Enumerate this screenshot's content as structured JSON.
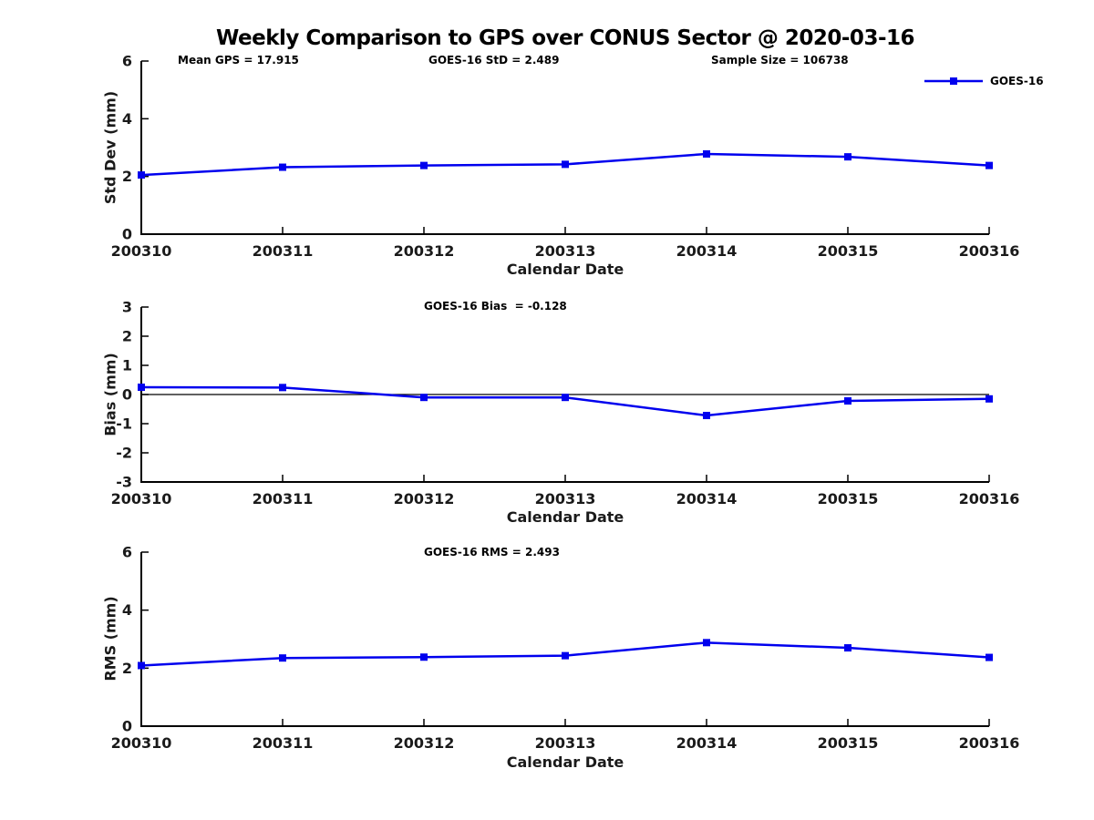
{
  "title": "Weekly Comparison to GPS over CONUS Sector @ 2020-03-16",
  "header_stats": {
    "mean_gps": "Mean GPS = 17.915",
    "std": "GOES-16 StD = 2.489",
    "sample_size": "Sample Size = 106738"
  },
  "legend": {
    "label": "GOES-16"
  },
  "colors": {
    "line": "#0000EE",
    "axis": "#000000",
    "text": "#1a1a1a",
    "zero_line": "#000000"
  },
  "chart_data": [
    {
      "type": "line",
      "title": "",
      "annotation": "",
      "categories": [
        "200310",
        "200311",
        "200312",
        "200313",
        "200314",
        "200315",
        "200316"
      ],
      "series": [
        {
          "name": "GOES-16",
          "values": [
            2.05,
            2.32,
            2.38,
            2.42,
            2.78,
            2.68,
            2.38
          ]
        }
      ],
      "xlabel": "Calendar Date",
      "ylabel": "Std Dev (mm)",
      "ylim": [
        0,
        6
      ],
      "yticks": [
        0,
        2,
        4,
        6
      ],
      "zero_line": false,
      "grid": false,
      "legend_position": "top-right",
      "marker": "square"
    },
    {
      "type": "line",
      "title": "",
      "annotation": "GOES-16 Bias  = -0.128",
      "categories": [
        "200310",
        "200311",
        "200312",
        "200313",
        "200314",
        "200315",
        "200316"
      ],
      "series": [
        {
          "name": "GOES-16",
          "values": [
            0.25,
            0.24,
            -0.1,
            -0.1,
            -0.72,
            -0.22,
            -0.15
          ]
        }
      ],
      "xlabel": "Calendar Date",
      "ylabel": "Bias (mm)",
      "ylim": [
        -3,
        3
      ],
      "yticks": [
        -3,
        -2,
        -1,
        0,
        1,
        2,
        3
      ],
      "zero_line": true,
      "grid": false,
      "legend_position": "none",
      "marker": "square"
    },
    {
      "type": "line",
      "title": "",
      "annotation": "GOES-16 RMS = 2.493",
      "categories": [
        "200310",
        "200311",
        "200312",
        "200313",
        "200314",
        "200315",
        "200316"
      ],
      "series": [
        {
          "name": "GOES-16",
          "values": [
            2.09,
            2.35,
            2.38,
            2.43,
            2.88,
            2.7,
            2.37
          ]
        }
      ],
      "xlabel": "Calendar Date",
      "ylabel": "RMS (mm)",
      "ylim": [
        0,
        6
      ],
      "yticks": [
        0,
        2,
        4,
        6
      ],
      "zero_line": false,
      "grid": false,
      "legend_position": "none",
      "marker": "square"
    }
  ]
}
